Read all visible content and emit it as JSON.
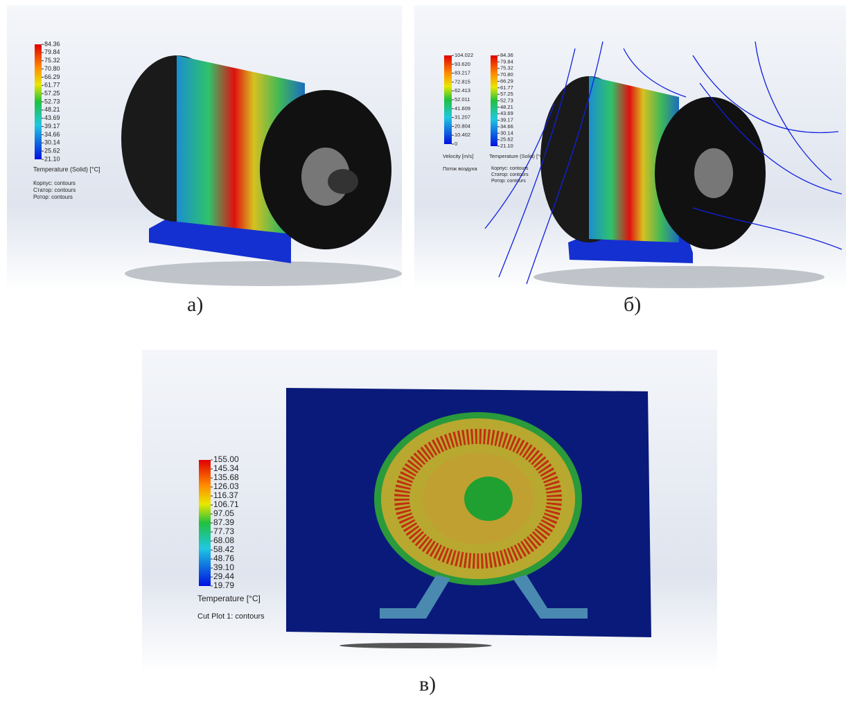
{
  "panels": [
    {
      "caption": "а)",
      "legends": [
        {
          "title": "Temperature (Solid) [°C]",
          "ticks": [
            "84.36",
            "79.84",
            "75.32",
            "70.80",
            "66.29",
            "61.77",
            "57.25",
            "52.73",
            "48.21",
            "43.69",
            "39.17",
            "34.66",
            "30.14",
            "25.62",
            "21.10"
          ]
        }
      ],
      "notes": [
        "Корпус: contours",
        "Статор: contours",
        "Ротор: contours"
      ]
    },
    {
      "caption": "б)",
      "legends": [
        {
          "title": "Velocity [m/s]",
          "ticks": [
            "104.022",
            "93.620",
            "83.217",
            "72.815",
            "62.413",
            "52.011",
            "41.609",
            "31.207",
            "20.804",
            "10.402",
            "0"
          ],
          "note": "Поток воздуха"
        },
        {
          "title": "Temperature (Solid) [°C]",
          "ticks": [
            "84.36",
            "79.84",
            "75.32",
            "70.80",
            "66.29",
            "61.77",
            "57.25",
            "52.73",
            "48.21",
            "43.69",
            "39.17",
            "34.66",
            "30.14",
            "25.62",
            "21.10"
          ]
        }
      ],
      "notes": [
        "Корпус: contours",
        "Статор: contours",
        "Ротор: contours"
      ]
    },
    {
      "caption": "в)",
      "legends": [
        {
          "title": "Temperature [°C]",
          "ticks": [
            "155.00",
            "145.34",
            "135.68",
            "126.03",
            "116.37",
            "106.71",
            "97.05",
            "87.39",
            "77.73",
            "68.08",
            "58.42",
            "48.76",
            "39.10",
            "29.44",
            "19.79"
          ]
        }
      ],
      "notes": [
        "Cut Plot 1: contours"
      ]
    }
  ]
}
